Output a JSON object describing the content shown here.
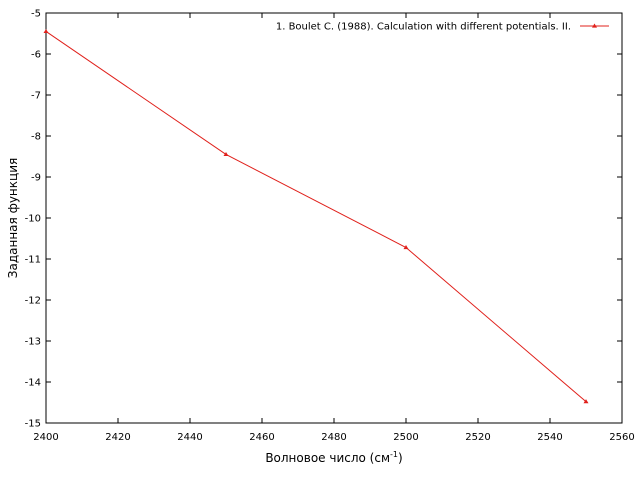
{
  "chart_data": {
    "type": "line",
    "title": "",
    "xlabel": "Волновое число (см",
    "xlabel_sup": "-1",
    "xlabel_suffix": ")",
    "ylabel": "Заданная функция",
    "xlim": [
      2400,
      2560
    ],
    "ylim": [
      -15,
      -5
    ],
    "x_ticks": [
      2400,
      2420,
      2440,
      2460,
      2480,
      2500,
      2520,
      2540,
      2560
    ],
    "y_ticks": [
      -5,
      -6,
      -7,
      -8,
      -9,
      -10,
      -11,
      -12,
      -13,
      -14,
      -15
    ],
    "grid": false,
    "legend_position": "top-right",
    "series": [
      {
        "name": "1. Boulet C. (1988). Calculation with different potentials. II.",
        "color": "#e0201b",
        "marker": "triangle",
        "x": [
          2400,
          2450,
          2500,
          2550
        ],
        "y": [
          -5.45,
          -8.45,
          -10.72,
          -14.48
        ]
      }
    ]
  }
}
